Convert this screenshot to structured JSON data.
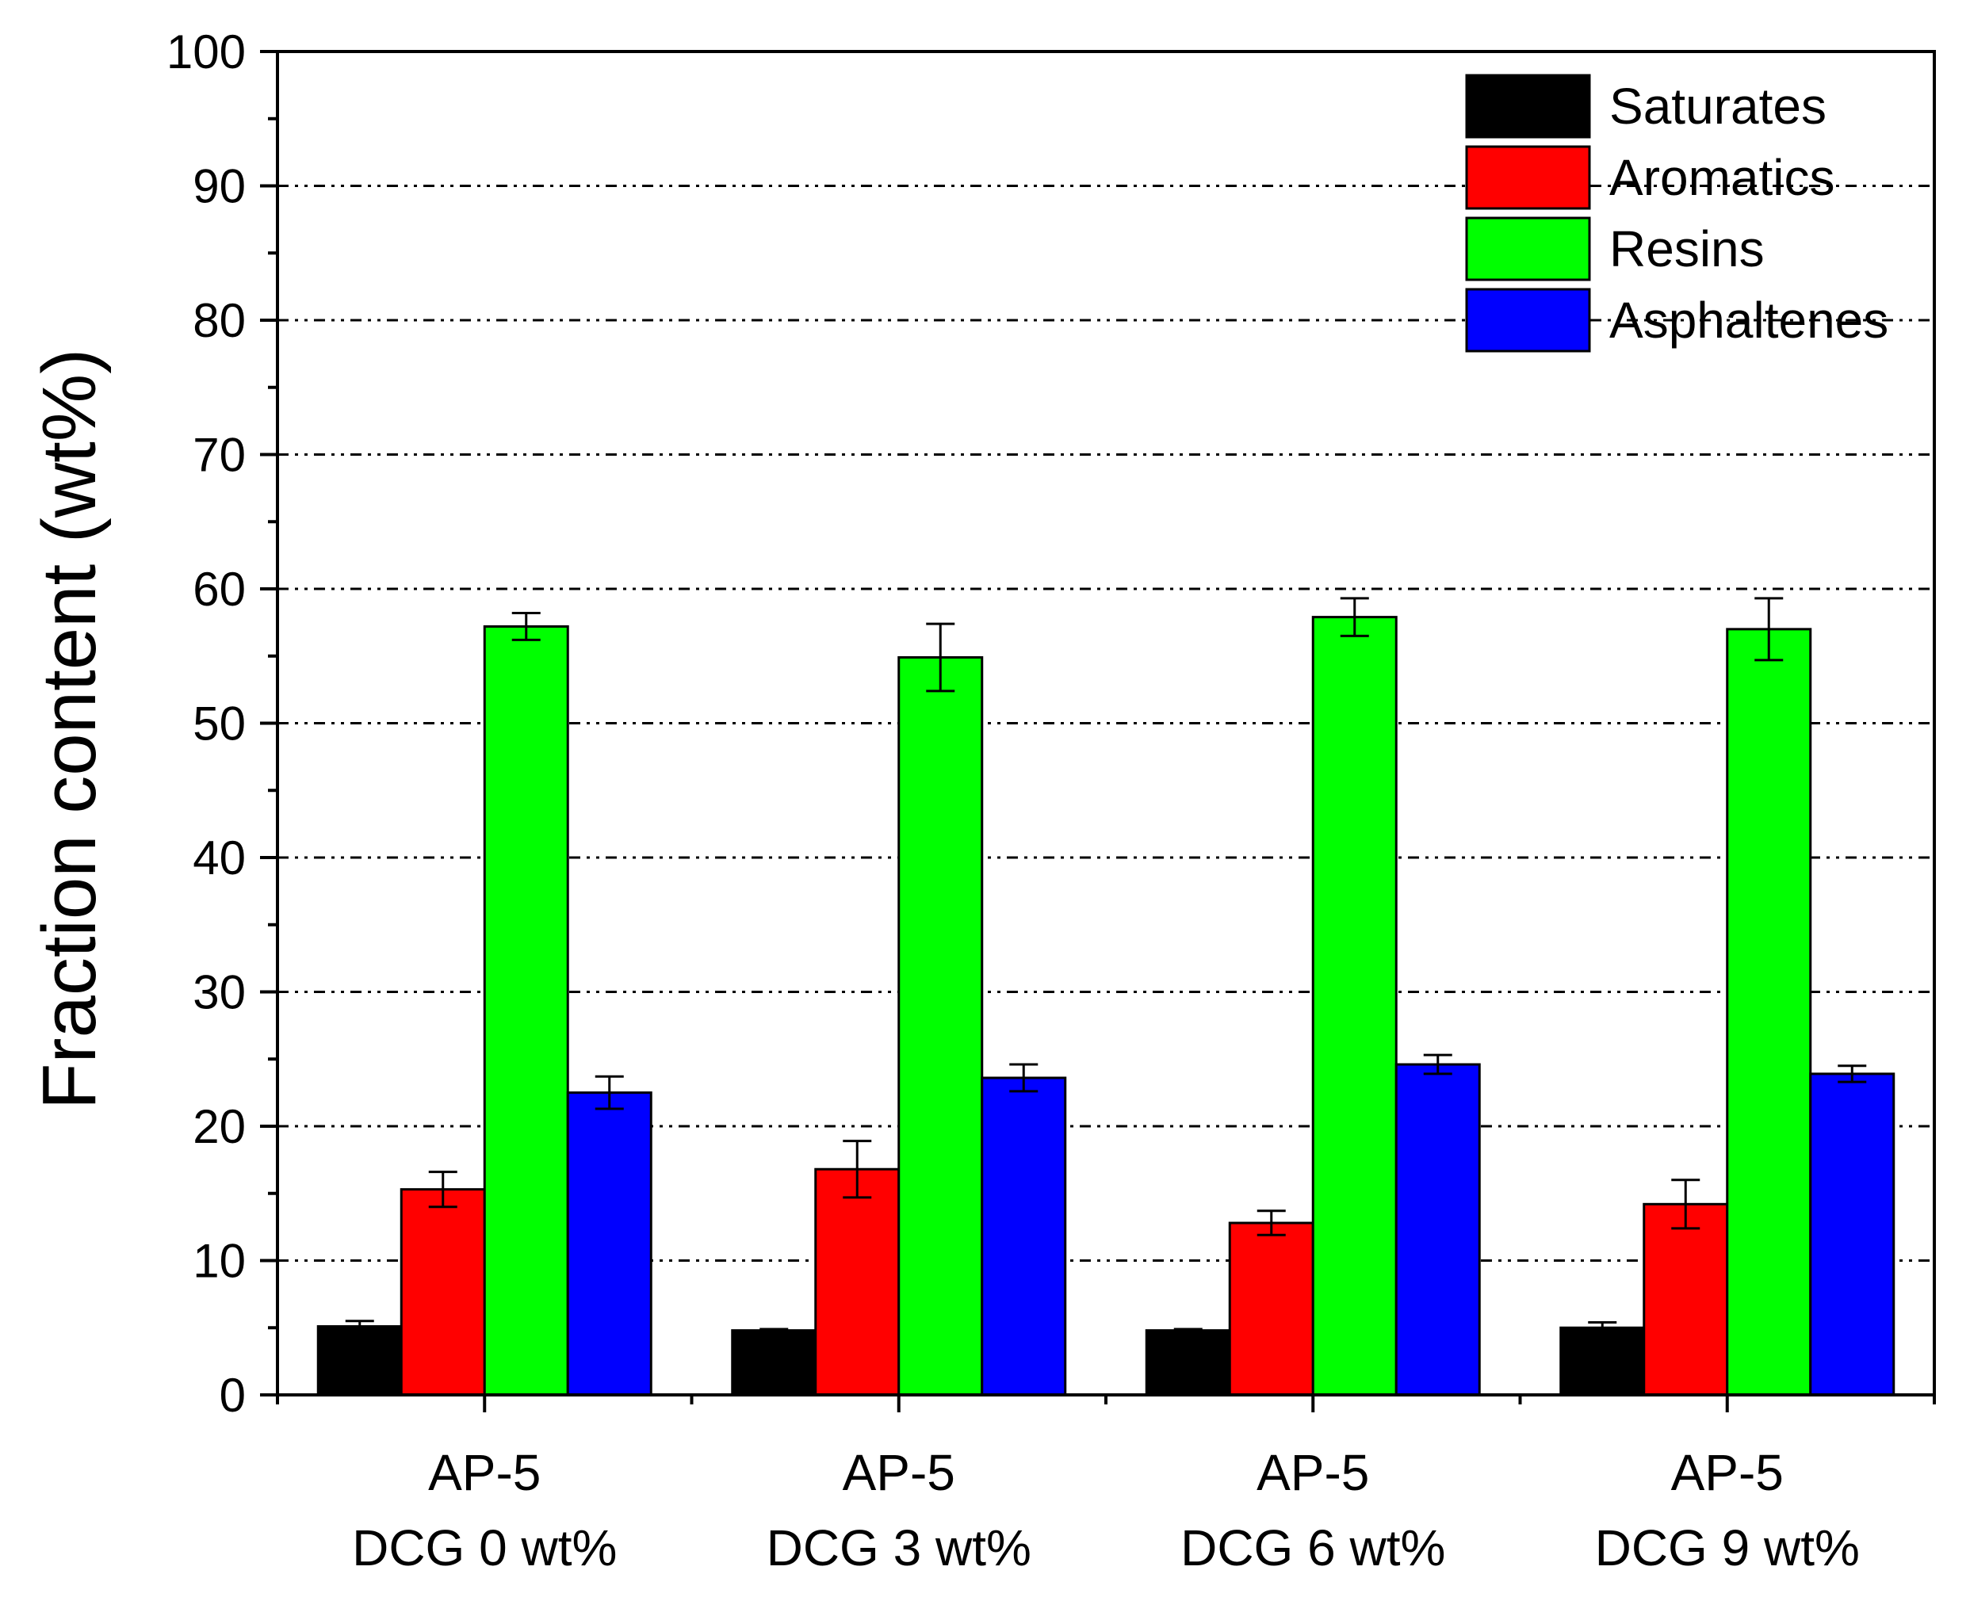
{
  "chart_data": {
    "type": "bar",
    "title": "",
    "xlabel": "",
    "ylabel": "Fraction content (wt%)",
    "ylim": [
      0,
      100
    ],
    "yticks": [
      "0",
      "10",
      "20",
      "30",
      "40",
      "50",
      "60",
      "70",
      "80",
      "90",
      "100"
    ],
    "ytick_values": [
      0,
      10,
      20,
      30,
      40,
      50,
      60,
      70,
      80,
      90,
      100
    ],
    "grid": true,
    "grid_lines_at": [
      10,
      20,
      30,
      40,
      50,
      60,
      70,
      80,
      90
    ],
    "legend_position": "top-right",
    "categories": [
      {
        "line1": "AP-5",
        "line2": "DCG 0 wt%"
      },
      {
        "line1": "AP-5",
        "line2": "DCG 3 wt%"
      },
      {
        "line1": "AP-5",
        "line2": "DCG 6 wt%"
      },
      {
        "line1": "AP-5",
        "line2": "DCG 9 wt%"
      }
    ],
    "series": [
      {
        "name": "Saturates",
        "color": "#000000",
        "values": [
          5.1,
          4.8,
          4.8,
          5.0
        ],
        "errors": [
          0.4,
          0.1,
          0.1,
          0.4
        ]
      },
      {
        "name": "Aromatics",
        "color": "#ff0000",
        "values": [
          15.3,
          16.8,
          12.8,
          14.2
        ],
        "errors": [
          1.3,
          2.1,
          0.9,
          1.8
        ]
      },
      {
        "name": "Resins",
        "color": "#00ff00",
        "values": [
          57.2,
          54.9,
          57.9,
          57.0
        ],
        "errors": [
          1.0,
          2.5,
          1.4,
          2.3
        ]
      },
      {
        "name": "Asphaltenes",
        "color": "#0000ff",
        "values": [
          22.5,
          23.6,
          24.6,
          23.9
        ],
        "errors": [
          1.2,
          1.0,
          0.7,
          0.6
        ]
      }
    ]
  }
}
